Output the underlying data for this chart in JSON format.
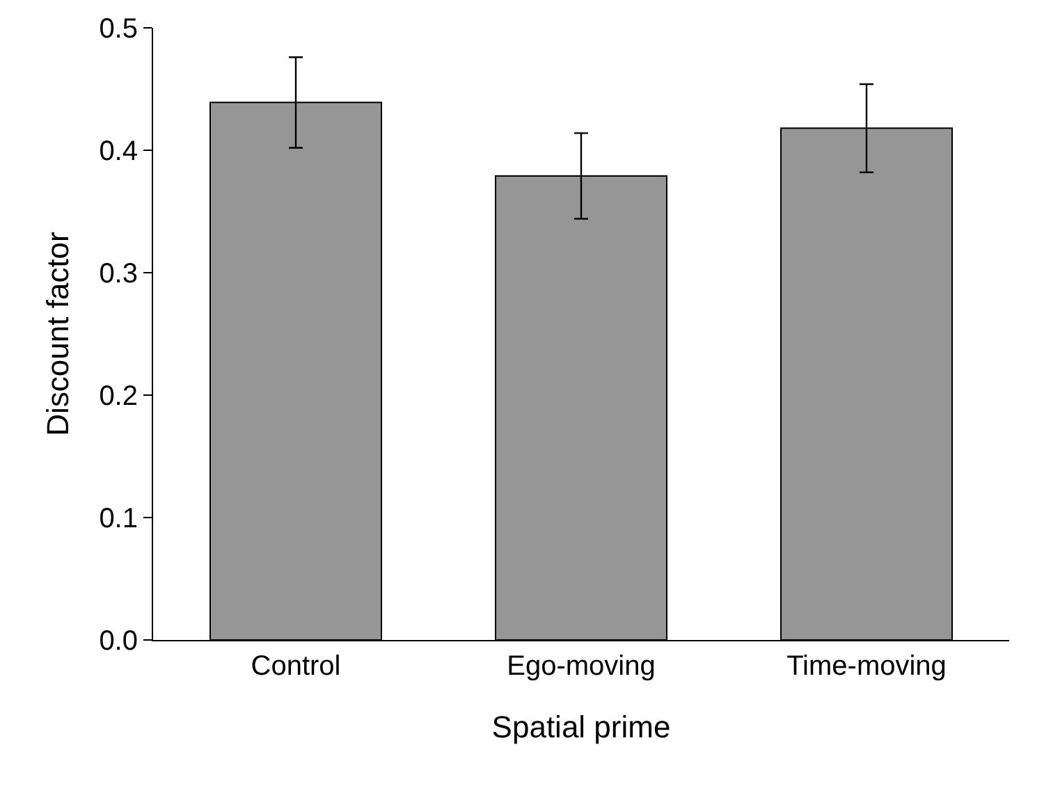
{
  "chart_data": {
    "type": "bar",
    "xlabel": "Spatial prime",
    "ylabel": "Discount factor",
    "categories": [
      "Control",
      "Ego-moving",
      "Time-moving"
    ],
    "values": [
      0.439,
      0.379,
      0.418
    ],
    "errors": [
      0.037,
      0.035,
      0.036
    ],
    "color": "#969696",
    "ylim": [
      0,
      0.5
    ],
    "yticks": [
      {
        "value": 0,
        "label": "0.0"
      },
      0.1,
      0.2,
      0.3,
      0.4,
      0.5
    ]
  }
}
